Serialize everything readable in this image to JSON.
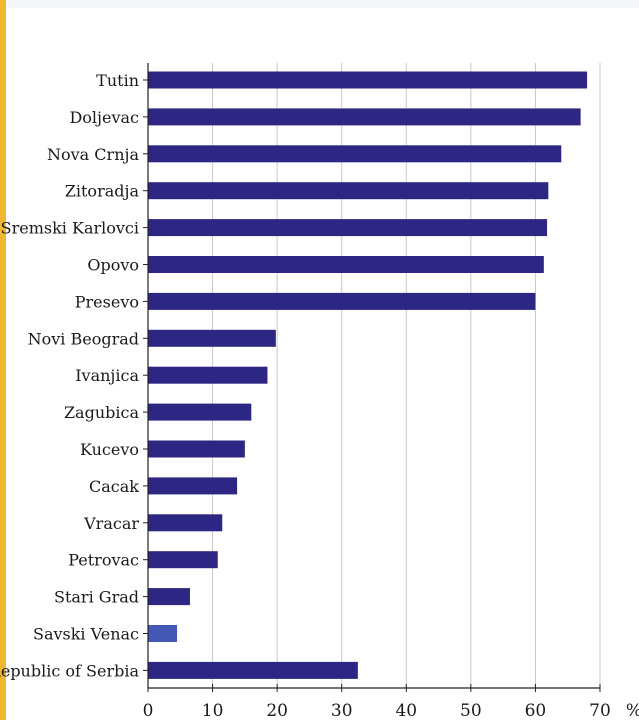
{
  "chart_data": {
    "type": "bar",
    "orientation": "horizontal",
    "categories": [
      "Tutin",
      "Doljevac",
      "Nova Crnja",
      "Zitoradja",
      "Sremski Karlovci",
      "Opovo",
      "Presevo",
      "Novi Beograd",
      "Ivanjica",
      "Zagubica",
      "Kucevo",
      "Cacak",
      "Vracar",
      "Petrovac",
      "Stari Grad",
      "Savski Venac",
      "Republic of Serbia"
    ],
    "values": [
      68,
      67,
      64,
      62,
      61.8,
      61.3,
      60,
      19.8,
      18.5,
      16,
      15,
      13.8,
      11.5,
      10.8,
      6.5,
      4.5,
      32.5
    ],
    "colors": [
      "#2e2683",
      "#2e2683",
      "#2e2683",
      "#2e2683",
      "#2e2683",
      "#2e2683",
      "#2e2683",
      "#2e2683",
      "#2e2683",
      "#2e2683",
      "#2e2683",
      "#2e2683",
      "#2e2683",
      "#2e2683",
      "#2e2683",
      "#4458b5",
      "#2e2683"
    ],
    "xlim": [
      0,
      70
    ],
    "xticks": [
      0,
      10,
      20,
      30,
      40,
      50,
      60,
      70
    ],
    "xunit": "%",
    "grid": "vertical"
  }
}
